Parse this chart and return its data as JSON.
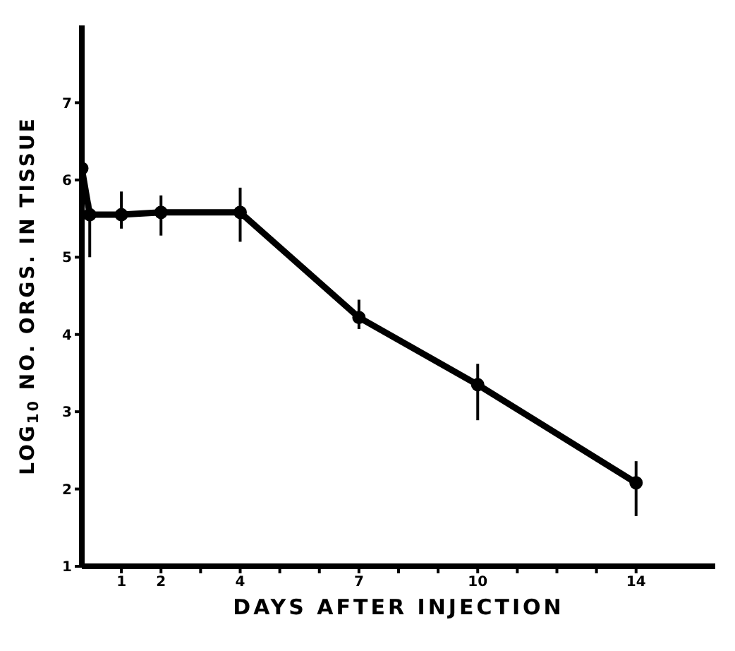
{
  "chart_data": {
    "type": "line",
    "xlabel": "DAYS AFTER INJECTION",
    "ylabel": "LOG$_{10}$ NO. ORGS. IN TISSUE",
    "x": [
      0,
      0.2,
      1,
      2,
      4,
      7,
      10,
      14
    ],
    "series": [
      {
        "color": "#000000",
        "values": [
          6.15,
          5.55,
          5.55,
          5.58,
          5.58,
          4.22,
          3.35,
          2.08
        ],
        "errors": [
          null,
          [
            5.0,
            5.7
          ],
          [
            5.37,
            5.85
          ],
          [
            5.28,
            5.8
          ],
          [
            5.2,
            5.9
          ],
          [
            4.07,
            4.45
          ],
          [
            2.89,
            3.62
          ],
          [
            1.65,
            2.36
          ]
        ]
      }
    ],
    "xlim": [
      0,
      16
    ],
    "xticks": [
      1,
      2,
      {
        "value": 3,
        "label": null
      },
      4,
      {
        "value": 5,
        "label": null
      },
      {
        "value": 6,
        "label": null
      },
      7,
      {
        "value": 8,
        "label": null
      },
      {
        "value": 9,
        "label": null
      },
      10,
      {
        "value": 11,
        "label": null
      },
      {
        "value": 12,
        "label": null
      },
      {
        "value": 13,
        "label": null
      },
      14
    ],
    "ylim": [
      1,
      8
    ],
    "yticks": [
      1,
      2,
      3,
      4,
      5,
      6,
      7
    ],
    "grid": false,
    "marker": "circle",
    "line_style": "solid"
  }
}
